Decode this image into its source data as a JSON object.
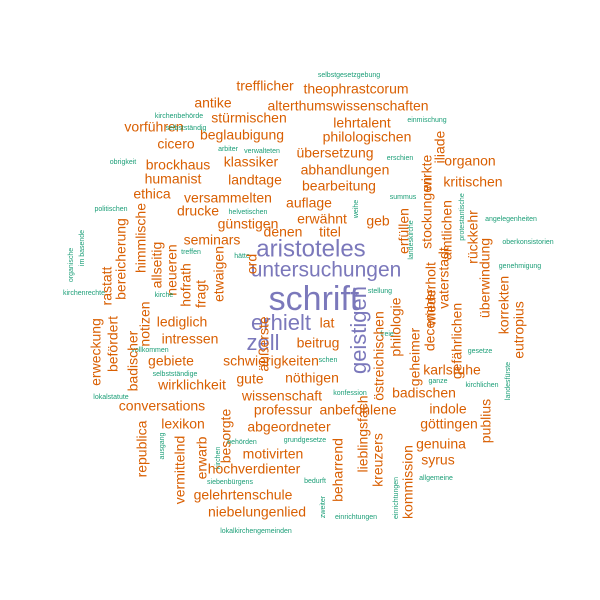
{
  "colors": {
    "large": "#7b78bb",
    "medium": "#d95f02",
    "small": "#1b9e77"
  },
  "words": {
    "w001": "schrift",
    "w002": "aristoteles",
    "w003": "untersuchungen",
    "w004": "geistigen",
    "w005": "erhielt",
    "w006": "zell",
    "w007": "selbstgesetzgebung",
    "w008": "trefflicher",
    "w009": "theophrastcorum",
    "w010": "antike",
    "w011": "alterthumswissenschaften",
    "w012": "kirchenbehörde",
    "w013": "stürmischen",
    "w014": "lehrtalent",
    "w015": "einmischung",
    "w016": "vorführen",
    "w017": "beglaubigung",
    "w018": "philologischen",
    "w019": "selbstständig",
    "w020": "cicero",
    "w021": "arbiter",
    "w022": "verwalteten",
    "w023": "iliade",
    "w024": "übersetzung",
    "w025": "erschien",
    "w026": "obrigkeit",
    "w027": "brockhaus",
    "w028": "klassiker",
    "w029": "organon",
    "w030": "abhandlungen",
    "w031": "humanist",
    "w032": "landtage",
    "w033": "wirkte",
    "w034": "bearbeitung",
    "w035": "kritischen",
    "w036": "ethica",
    "w037": "versammelten",
    "w038": "summus",
    "w039": "auflage",
    "w040": "politischen",
    "w041": "drucke",
    "w042": "helvetischen",
    "w043": "weihe",
    "w044": "erwähnt",
    "w045": "stockungen",
    "w046": "angelegenheiten",
    "w047": "günstigen",
    "w048": "erfüllen",
    "w049": "geb",
    "w050": "protestantische",
    "w051": "amtlichen",
    "w052": "himmlische",
    "w053": "denen",
    "w054": "titel",
    "w055": "landeskirche",
    "w056": "rückkehr",
    "w057": "oberkonsistorien",
    "w058": "im basende",
    "w059": "seminars",
    "w060": "bereicherung",
    "w061": "treffen",
    "w062": "hätte",
    "w063": "ord",
    "w064": "organische",
    "w065": "neueren",
    "w066": "etwaigen",
    "w067": "vaterstadt",
    "w068": "genehmigung",
    "w069": "überwindung",
    "w070": "allseitig",
    "w071": "hofrath",
    "w072": "rastatt",
    "w073": "kirchenrechte",
    "w074": "kirche",
    "w075": "fragt",
    "w076": "stellung",
    "w077": "lediglich",
    "w078": "korrekten",
    "w079": "december",
    "w080": "lat",
    "w081": "wiederholt",
    "w082": "eutropius",
    "w083": "erweckung",
    "w084": "notizen",
    "w085": "befördert",
    "w086": "gefährlichen",
    "w087": "äußerste",
    "w088": "intressen",
    "w089": "beitrug",
    "w090": "philologie",
    "w091": "vollkommen",
    "w092": "freie",
    "w093": "badischer",
    "w094": "gebiete",
    "w095": "schwierigkeiten",
    "w096": "schen",
    "w097": "gesetze",
    "w098": "selbstständige",
    "w099": "östreichischen",
    "w100": "geheimer",
    "w101": "karlsruhe",
    "w102": "wirklichkeit",
    "w103": "gute",
    "w104": "nöthigen",
    "w105": "ganze",
    "w106": "kirchlichen",
    "w107": "lokalstatute",
    "w108": "konfession",
    "w109": "landesfürste",
    "w110": "wissenschaft",
    "w111": "conversations",
    "w112": "professur",
    "w113": "anbefohlene",
    "w114": "badischen",
    "w115": "indole",
    "w116": "abgeordneter",
    "w117": "lexikon",
    "w118": "lieblingsfach",
    "w119": "göttingen",
    "w120": "publius",
    "w121": "republica",
    "w122": "ausgang",
    "w123": "besorgte",
    "w124": "erwarb",
    "w125": "grundgesetze",
    "w126": "genuina",
    "w127": "vermittelnd",
    "w128": "motivirten",
    "w129": "kreuzers",
    "w130": "behörden",
    "w131": "syrus",
    "w132": "kirchen",
    "w133": "hochverdienter",
    "w134": "siebenbürgens",
    "w135": "bedurft",
    "w136": "beharrend",
    "w137": "kommission",
    "w138": "gelehrtenschule",
    "w139": "allgemeine",
    "w140": "niebelungenlied",
    "w141": "einrichtungen",
    "w142": "einrichtungen",
    "w143": "lokalkirchengemeinden",
    "w144": "zweiter"
  }
}
